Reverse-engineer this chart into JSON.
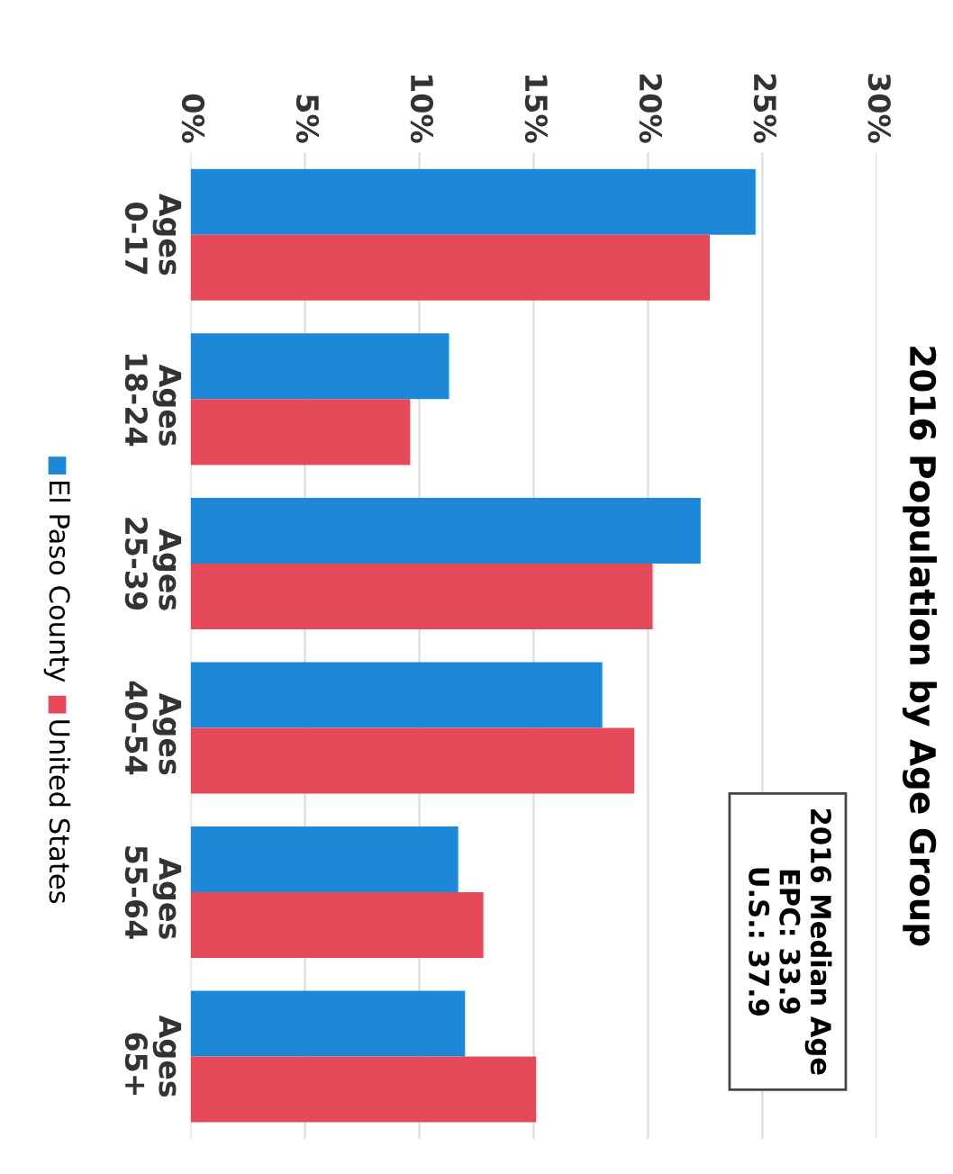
{
  "chart_data": {
    "type": "bar",
    "orientation": "horizontal",
    "title": "2016 Population by Age Group",
    "categories": [
      "Ages\n0-17",
      "Ages\n18-24",
      "Ages\n25-39",
      "Ages\n40-54",
      "Ages\n55-64",
      "Ages\n65+"
    ],
    "series": [
      {
        "name": "El Paso County",
        "color": "#1e88d8",
        "values": [
          24.7,
          11.3,
          22.3,
          18.0,
          11.7,
          12.0
        ]
      },
      {
        "name": "United States",
        "color": "#e64a5a",
        "values": [
          22.7,
          9.6,
          20.2,
          19.4,
          12.8,
          15.1
        ]
      }
    ],
    "xlim": [
      0,
      30
    ],
    "xticks": [
      {
        "value": 0,
        "label": "0%"
      },
      {
        "value": 5,
        "label": "5%"
      },
      {
        "value": 10,
        "label": "10%"
      },
      {
        "value": 15,
        "label": "15%"
      },
      {
        "value": 20,
        "label": "20%"
      },
      {
        "value": 25,
        "label": "25%"
      },
      {
        "value": 30,
        "label": "30%"
      }
    ],
    "grid": "x",
    "legend": "left",
    "annotations": [
      "2016 Median Age\nEPC: 33.9\nU.S.: 37.9"
    ]
  }
}
